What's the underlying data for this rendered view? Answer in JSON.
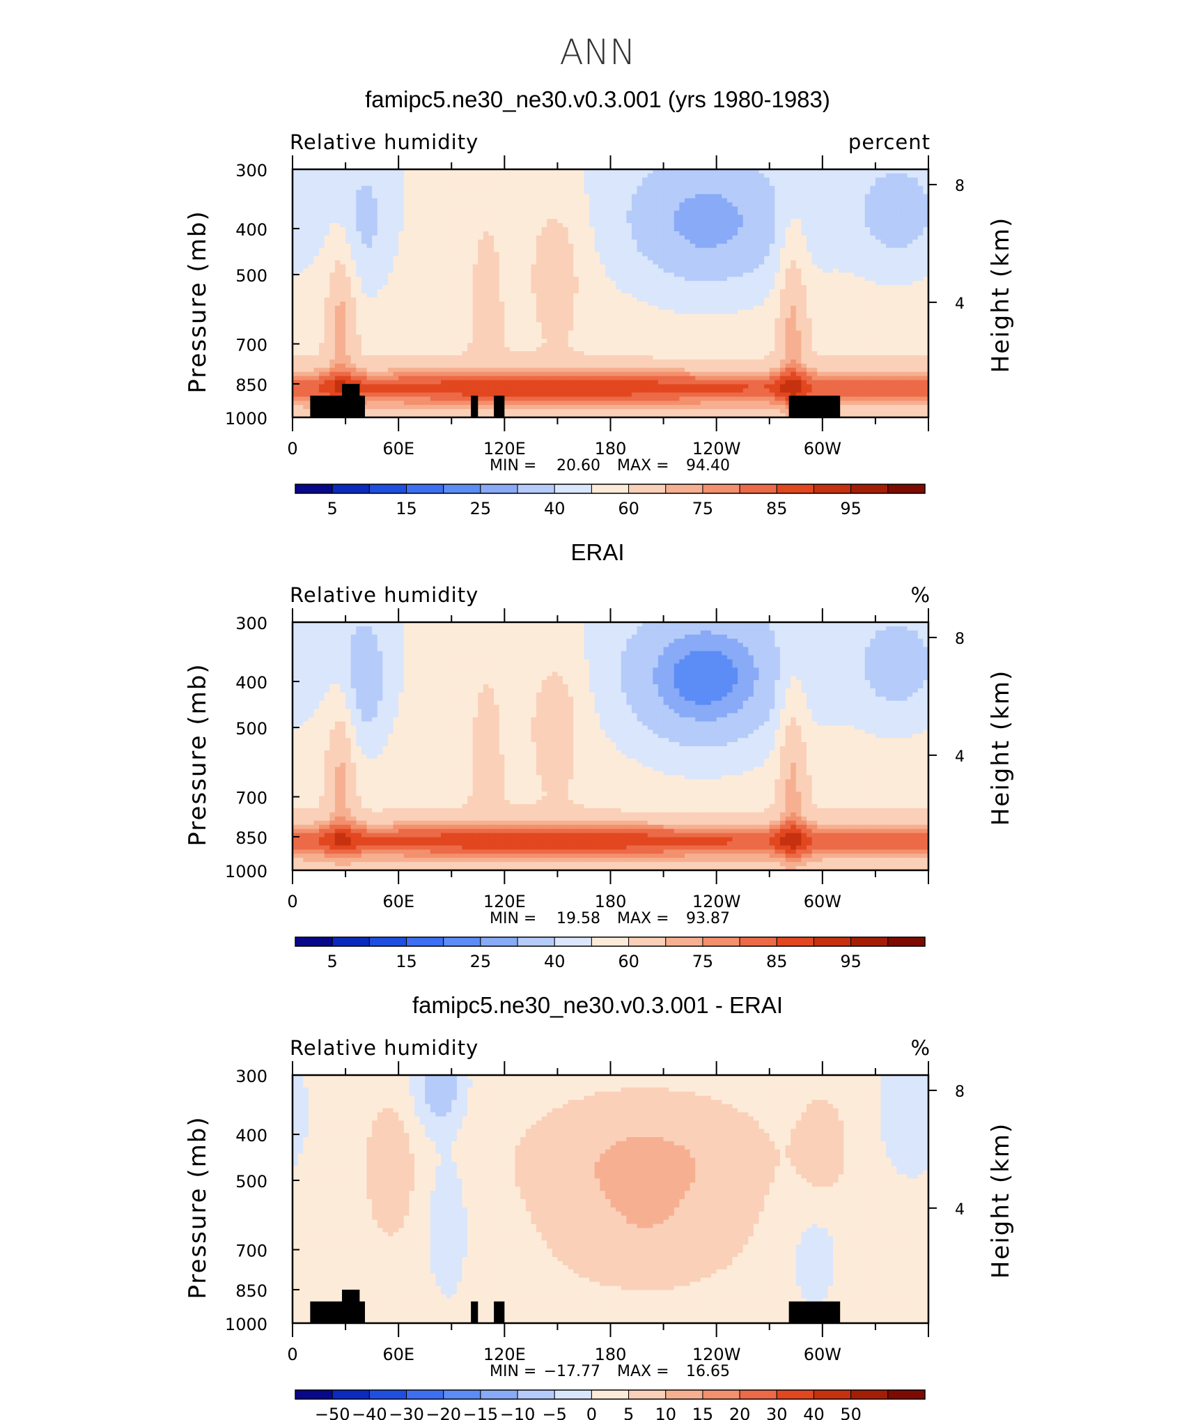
{
  "title": "ANN",
  "colors": {
    "rh_levels": [
      "#08088a",
      "#0a2bbd",
      "#1e4fe0",
      "#3c6ff2",
      "#5c8cf5",
      "#88aaf7",
      "#b5cbf9",
      "#dae6fb",
      "#fdebd9",
      "#fad0b8",
      "#f6b091",
      "#f3906d",
      "#ec6a47",
      "#e2471f",
      "#c6310f",
      "#a41e06",
      "#7d0b00"
    ],
    "diff_levels": [
      "#08088a",
      "#0a2bbd",
      "#1e4fe0",
      "#3c6ff2",
      "#5c8cf5",
      "#88aaf7",
      "#b5cbf9",
      "#dae6fb",
      "#fdebd9",
      "#fad0b8",
      "#f6b091",
      "#f3906d",
      "#ec6a47",
      "#e2471f",
      "#c6310f",
      "#a41e06",
      "#7d0b00"
    ],
    "terrain": "#000000"
  },
  "chart_data": [
    {
      "type": "heatmap",
      "title": "famipc5.ne30_ne30.v0.3.001 (yrs 1980-1983)",
      "left_label": "Relative humidity",
      "right_label": "percent",
      "xlabel": "",
      "ylabel": "Pressure (mb)",
      "ylabel_right": "Height (km)",
      "x_ticks": [
        "0",
        "60E",
        "120E",
        "180",
        "120W",
        "60W"
      ],
      "y_ticks": [
        "300",
        "400",
        "500",
        "700",
        "850",
        "1000"
      ],
      "y_right_ticks": [
        "8",
        "4"
      ],
      "ylim": [
        1000,
        300
      ],
      "xlim": [
        0,
        360
      ],
      "min_label": "MIN =",
      "min_value": "20.60",
      "max_label": "MAX =",
      "max_value": "94.40",
      "colorbar_ticks": [
        "5",
        "15",
        "25",
        "40",
        "60",
        "75",
        "85",
        "95"
      ]
    },
    {
      "type": "heatmap",
      "title": "ERAI",
      "left_label": "Relative humidity",
      "right_label": "%",
      "xlabel": "",
      "ylabel": "Pressure (mb)",
      "ylabel_right": "Height (km)",
      "x_ticks": [
        "0",
        "60E",
        "120E",
        "180",
        "120W",
        "60W"
      ],
      "y_ticks": [
        "300",
        "400",
        "500",
        "700",
        "850",
        "1000"
      ],
      "y_right_ticks": [
        "8",
        "4"
      ],
      "ylim": [
        1000,
        300
      ],
      "xlim": [
        0,
        360
      ],
      "min_label": "MIN =",
      "min_value": "19.58",
      "max_label": "MAX =",
      "max_value": "93.87",
      "colorbar_ticks": [
        "5",
        "15",
        "25",
        "40",
        "60",
        "75",
        "85",
        "95"
      ]
    },
    {
      "type": "heatmap",
      "title": "famipc5.ne30_ne30.v0.3.001 - ERAI",
      "left_label": "Relative humidity",
      "right_label": "%",
      "xlabel": "",
      "ylabel": "Pressure (mb)",
      "ylabel_right": "Height (km)",
      "x_ticks": [
        "0",
        "60E",
        "120E",
        "180",
        "120W",
        "60W"
      ],
      "y_ticks": [
        "300",
        "400",
        "500",
        "700",
        "850",
        "1000"
      ],
      "y_right_ticks": [
        "8",
        "4"
      ],
      "ylim": [
        1000,
        300
      ],
      "xlim": [
        0,
        360
      ],
      "min_label": "MIN =",
      "min_value": "−17.77",
      "max_label": "MAX =",
      "max_value": "16.65",
      "colorbar_ticks": [
        "−50",
        "−40",
        "−30",
        "−20",
        "−15",
        "−10",
        "−5",
        "0",
        "5",
        "10",
        "15",
        "20",
        "30",
        "40",
        "50"
      ]
    }
  ]
}
